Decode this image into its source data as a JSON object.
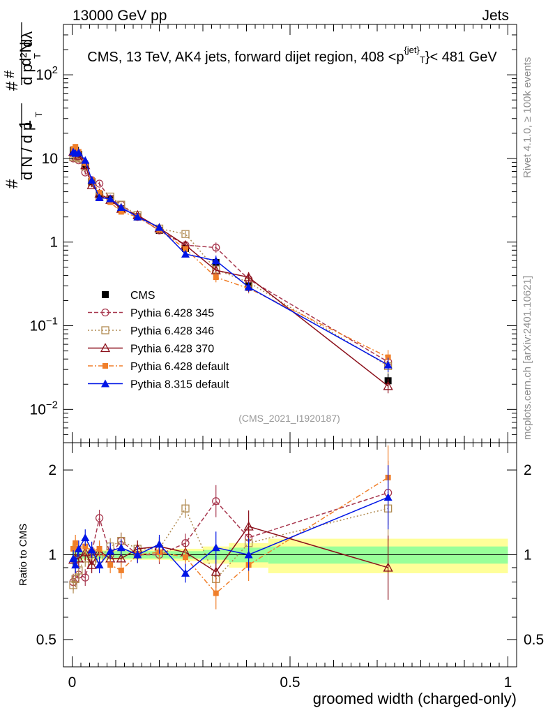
{
  "header": {
    "energy_label": "13000 GeV pp",
    "category_label": "Jets",
    "rivet_label": "Rivet 4.1.0, ≥ 100k events",
    "mcplots_label": "mcplots.cern.ch [arXiv:2401.10621]",
    "analysis_id": "(CMS_2021_I1920187)"
  },
  "chart_data": [
    {
      "type": "line",
      "panel": "main",
      "title": "CMS, 13 TeV, AK4 jets, forward dijet region, 408 <p_T^{jet}< 481 GeV",
      "ylabel": "1/dN/dpT  d²N/dpT dλ",
      "yscale": "log",
      "ylim": [
        0.004,
        400
      ],
      "xlim": [
        -0.02,
        1.02
      ],
      "y_ticks": [
        {
          "value": 0.01,
          "label": "10^-2"
        },
        {
          "value": 0.1,
          "label": "10^-1"
        },
        {
          "value": 1,
          "label": "1"
        },
        {
          "value": 10,
          "label": "10"
        },
        {
          "value": 100,
          "label": "10^2"
        }
      ],
      "x": [
        0.0025,
        0.0075,
        0.015,
        0.03,
        0.045,
        0.0625,
        0.0875,
        0.1125,
        0.15,
        0.2,
        0.26,
        0.33,
        0.405,
        0.725
      ],
      "series": [
        {
          "name": "CMS",
          "color": "#000000",
          "marker": "square",
          "dash": "",
          "values": [
            12.5,
            12.5,
            11.2,
            8.2,
            5.3,
            3.7,
            3.3,
            2.5,
            2.0,
            1.38,
            0.84,
            0.57,
            0.3,
            0.022
          ]
        },
        {
          "name": "Pythia 6.428 345",
          "color": "#a8384f",
          "marker": "open-circle",
          "dash": "6,3",
          "values": [
            10.0,
            10.3,
            9.5,
            6.8,
            5.5,
            5.0,
            3.3,
            2.8,
            2.0,
            1.38,
            0.92,
            0.86,
            0.36,
            0.037
          ]
        },
        {
          "name": "Pythia 6.428 346",
          "color": "#b08a50",
          "marker": "open-square",
          "dash": "2,3",
          "values": [
            10.3,
            10.3,
            10.0,
            8.0,
            5.2,
            3.5,
            3.5,
            2.8,
            2.1,
            1.45,
            1.25,
            0.47,
            0.33,
            0.033
          ]
        },
        {
          "name": "Pythia 6.428 370",
          "color": "#8b0f1a",
          "marker": "open-triangle",
          "dash": "",
          "values": [
            12.0,
            12.0,
            10.8,
            8.3,
            4.8,
            3.8,
            3.2,
            2.5,
            2.1,
            1.47,
            0.92,
            0.46,
            0.38,
            0.019
          ]
        },
        {
          "name": "Pythia 6.428 default",
          "color": "#f07f2a",
          "marker": "filled-square",
          "dash": "7,3,2,3",
          "values": [
            13.0,
            13.8,
            12.0,
            8.8,
            5.5,
            3.9,
            3.0,
            2.3,
            2.0,
            1.4,
            0.83,
            0.38,
            0.28,
            0.042
          ]
        },
        {
          "name": "Pythia 8.315 default",
          "color": "#0015e6",
          "marker": "filled-triangle",
          "dash": "",
          "values": [
            12.0,
            11.5,
            11.8,
            9.5,
            5.5,
            3.4,
            3.3,
            2.6,
            2.0,
            1.5,
            0.72,
            0.6,
            0.29,
            0.034
          ]
        }
      ]
    },
    {
      "type": "line",
      "panel": "ratio",
      "ylabel": "Ratio to CMS",
      "xlabel": "groomed width (charged-only)",
      "yscale": "log",
      "ylim": [
        0.4,
        2.5
      ],
      "xlim": [
        -0.02,
        1.02
      ],
      "y_ticks": [
        {
          "value": 0.5,
          "label": "0.5"
        },
        {
          "value": 1,
          "label": "1"
        },
        {
          "value": 2,
          "label": "2"
        }
      ],
      "x_ticks": [
        {
          "value": 0,
          "label": "0"
        },
        {
          "value": 0.5,
          "label": "0.5"
        },
        {
          "value": 1,
          "label": "1"
        }
      ],
      "x": [
        0.0025,
        0.0075,
        0.015,
        0.03,
        0.045,
        0.0625,
        0.0875,
        0.1125,
        0.15,
        0.2,
        0.26,
        0.33,
        0.405,
        0.725
      ],
      "uncertainty_bands": {
        "x_edges": [
          0,
          0.005,
          0.01,
          0.02,
          0.04,
          0.05,
          0.075,
          0.1,
          0.125,
          0.175,
          0.225,
          0.3,
          0.36,
          0.45,
          1.0
        ],
        "inner": [
          0.08,
          0.06,
          0.05,
          0.03,
          0.03,
          0.03,
          0.03,
          0.03,
          0.03,
          0.03,
          0.03,
          0.04,
          0.06,
          0.07
        ],
        "outer": [
          0.1,
          0.07,
          0.06,
          0.04,
          0.04,
          0.04,
          0.04,
          0.04,
          0.04,
          0.04,
          0.05,
          0.07,
          0.1,
          0.14
        ]
      },
      "series": [
        {
          "name": "Pythia 6.428 345",
          "color": "#a8384f",
          "marker": "open-circle",
          "dash": "6,3",
          "values": [
            0.8,
            0.82,
            0.85,
            0.83,
            1.02,
            1.35,
            1.0,
            1.12,
            1.0,
            1.0,
            1.1,
            1.55,
            1.15,
            1.66
          ]
        },
        {
          "name": "Pythia 6.428 346",
          "color": "#b08a50",
          "marker": "open-square",
          "dash": "2,3",
          "values": [
            0.78,
            0.82,
            0.88,
            0.97,
            0.95,
            0.97,
            1.07,
            1.12,
            1.05,
            1.05,
            1.46,
            0.82,
            1.1,
            1.46
          ]
        },
        {
          "name": "Pythia 6.428 370",
          "color": "#8b0f1a",
          "marker": "open-triangle",
          "dash": "",
          "values": [
            0.96,
            0.97,
            0.97,
            1.02,
            0.92,
            1.03,
            0.97,
            0.97,
            1.05,
            1.07,
            1.02,
            0.87,
            1.26,
            0.9
          ]
        },
        {
          "name": "Pythia 6.428 default",
          "color": "#f07f2a",
          "marker": "filled-square",
          "dash": "7,3,2,3",
          "values": [
            1.05,
            1.1,
            1.05,
            1.07,
            1.03,
            1.05,
            0.92,
            0.88,
            1.0,
            1.02,
            0.98,
            0.73,
            0.92,
            1.88
          ]
        },
        {
          "name": "Pythia 8.315 default",
          "color": "#0015e6",
          "marker": "filled-triangle",
          "dash": "",
          "values": [
            0.97,
            0.92,
            1.05,
            1.15,
            1.04,
            0.92,
            1.03,
            1.06,
            1.0,
            1.09,
            0.86,
            1.06,
            1.0,
            1.6
          ]
        }
      ]
    }
  ]
}
